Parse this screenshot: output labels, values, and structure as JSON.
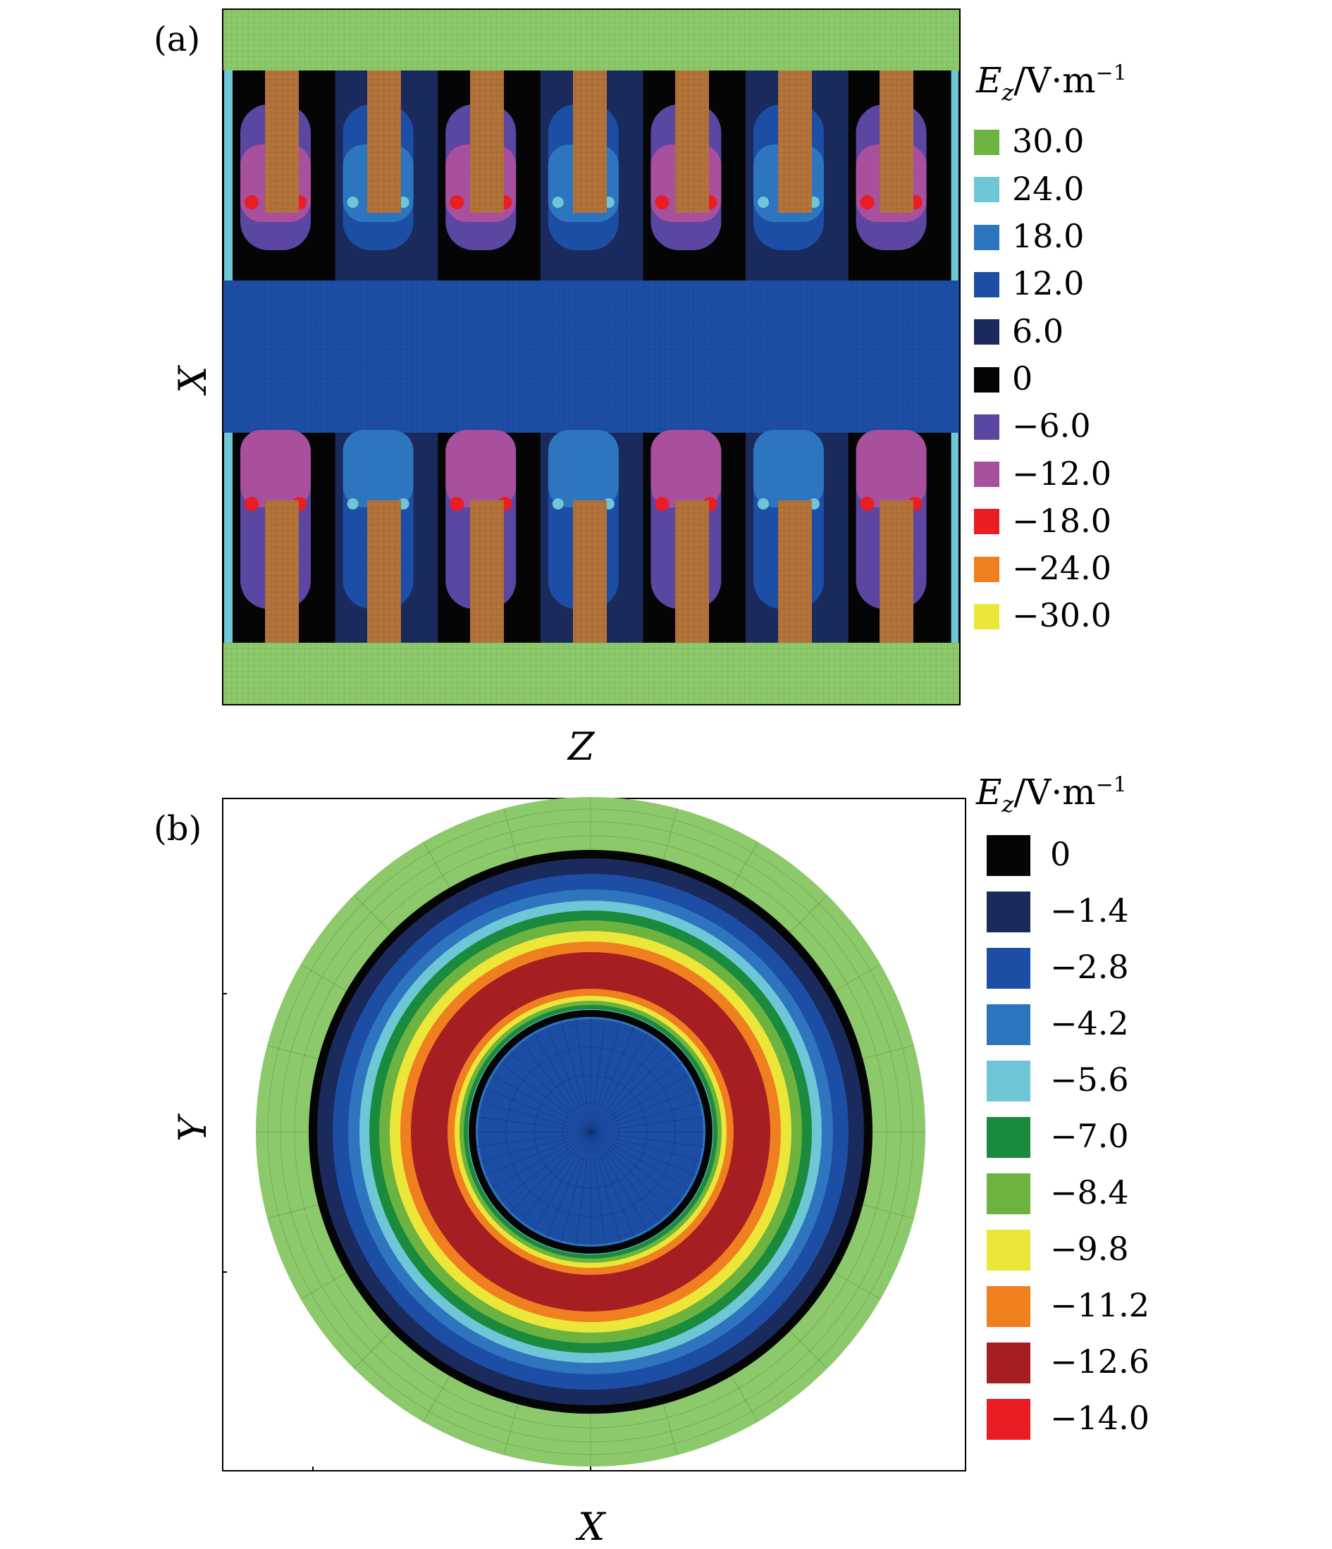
{
  "chart_data": [
    {
      "type": "heatmap",
      "panel_label": "(a)",
      "xlabel": "Z",
      "ylabel": "X",
      "legend_title": {
        "symbol": "E",
        "subscript": "z",
        "unit": "/V·m",
        "exponent": "−1"
      },
      "legend": [
        {
          "label": "30.0",
          "value": 30.0,
          "color": "#6cb33f"
        },
        {
          "label": "24.0",
          "value": 24.0,
          "color": "#6fc6d6"
        },
        {
          "label": "18.0",
          "value": 18.0,
          "color": "#2e75c0"
        },
        {
          "label": "12.0",
          "value": 12.0,
          "color": "#1d4ea6"
        },
        {
          "label": "6.0",
          "value": 6.0,
          "color": "#1a2a5c"
        },
        {
          "label": "0",
          "value": 0,
          "color": "#050505"
        },
        {
          "label": "−6.0",
          "value": -6.0,
          "color": "#5b46a2"
        },
        {
          "label": "−12.0",
          "value": -12.0,
          "color": "#a84f9e"
        },
        {
          "label": "−18.0",
          "value": -18.0,
          "color": "#ea1c24"
        },
        {
          "label": "−24.0",
          "value": -24.0,
          "color": "#f07f1f"
        },
        {
          "label": "−30.0",
          "value": -30.0,
          "color": "#ece639"
        }
      ],
      "colors": {
        "outer_band": "#8cc96a",
        "core": "#1d4ea6",
        "electrode": "#b3733a",
        "edge": "#6fc6d6"
      },
      "cells_per_row": 7
    },
    {
      "type": "heatmap",
      "panel_label": "(b)",
      "xlabel": "X",
      "ylabel": "Y",
      "legend_title": {
        "symbol": "E",
        "subscript": "z",
        "unit": "/V·m",
        "exponent": "−1"
      },
      "legend": [
        {
          "label": "0",
          "value": 0,
          "color": "#050505"
        },
        {
          "label": "−1.4",
          "value": -1.4,
          "color": "#1a2a5c"
        },
        {
          "label": "−2.8",
          "value": -2.8,
          "color": "#1d4ea6"
        },
        {
          "label": "−4.2",
          "value": -4.2,
          "color": "#2e75c0"
        },
        {
          "label": "−5.6",
          "value": -5.6,
          "color": "#6fc6d6"
        },
        {
          "label": "−7.0",
          "value": -7.0,
          "color": "#1a8a3c"
        },
        {
          "label": "−8.4",
          "value": -8.4,
          "color": "#6cb33f"
        },
        {
          "label": "−9.8",
          "value": -9.8,
          "color": "#ece639"
        },
        {
          "label": "−11.2",
          "value": -11.2,
          "color": "#f07f1f"
        },
        {
          "label": "−12.6",
          "value": -12.6,
          "color": "#a61e22"
        },
        {
          "label": "−14.0",
          "value": -14.0,
          "color": "#ea1c24"
        }
      ],
      "colors": {
        "outer_band": "#8cc96a",
        "core": "#1d4ea6"
      }
    }
  ]
}
